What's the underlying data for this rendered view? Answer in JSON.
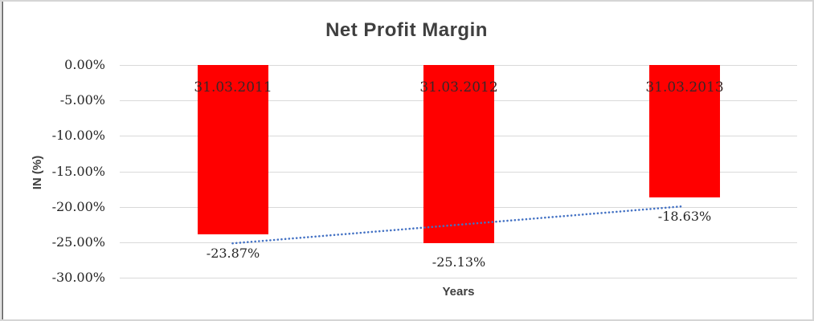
{
  "chart": {
    "title": "Net Profit Margin",
    "x_axis_title": "Years",
    "y_axis_title": "IN (%)"
  },
  "chart_data": {
    "type": "bar",
    "title": "Net Profit Margin",
    "xlabel": "Years",
    "ylabel": "IN (%)",
    "categories": [
      "31.03.2011",
      "31.03.2012",
      "31.03.2013"
    ],
    "values": [
      -23.87,
      -25.13,
      -18.63
    ],
    "data_labels": [
      "-23.87%",
      "-25.13%",
      "-18.63%"
    ],
    "y_ticks": [
      "0.00%",
      "-5.00%",
      "-10.00%",
      "-15.00%",
      "-20.00%",
      "-25.00%",
      "-30.00%"
    ],
    "ylim": [
      -30,
      0
    ],
    "grid": true,
    "legend": "none",
    "bar_color": "#FF0000",
    "bar_label_color": "#3A2727",
    "gridline_color": "#D9D9D9",
    "trendline": {
      "type": "linear",
      "style": "dotted",
      "color": "#4472C4",
      "fitted_endpoints_pct": [
        -25.16,
        -19.92
      ]
    }
  }
}
